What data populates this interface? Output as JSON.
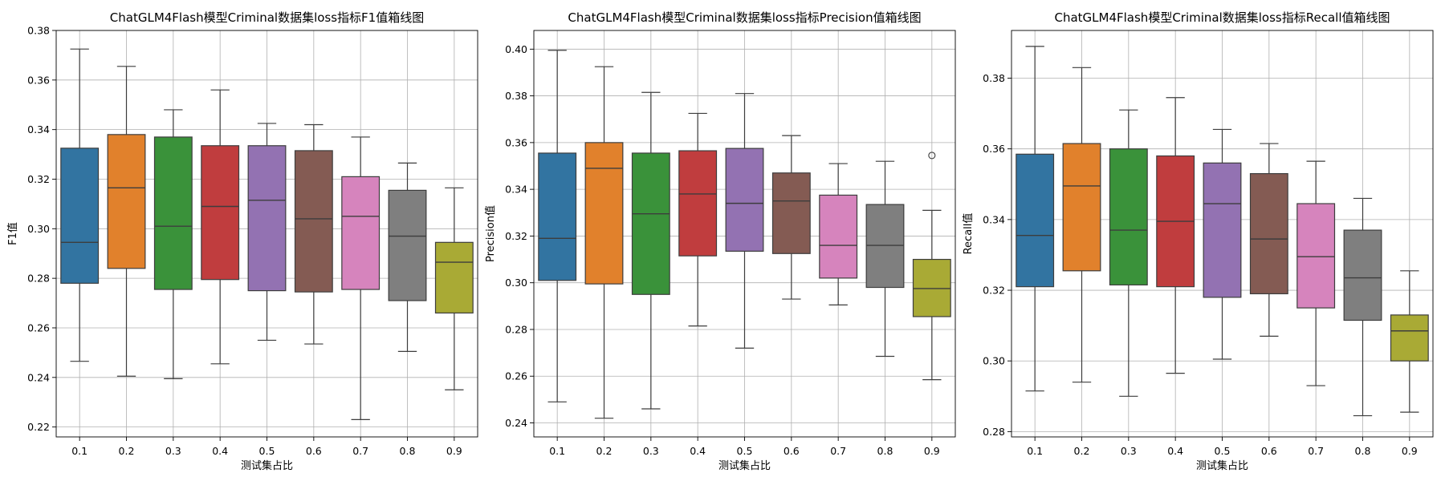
{
  "colors": [
    "#3274a1",
    "#e1812c",
    "#3a923a",
    "#c03d3e",
    "#9372b2",
    "#845b53",
    "#d684bd",
    "#7f7f7f",
    "#a9aa35"
  ],
  "chart_data": [
    {
      "type": "box",
      "title": "ChatGLM4Flash模型Criminal数据集loss指标F1值箱线图",
      "xlabel": "测试集占比",
      "ylabel": "F1值",
      "categories": [
        "0.1",
        "0.2",
        "0.3",
        "0.4",
        "0.5",
        "0.6",
        "0.7",
        "0.8",
        "0.9"
      ],
      "ylim": [
        0.216,
        0.38
      ],
      "yticks": [
        "0.22",
        "0.24",
        "0.26",
        "0.28",
        "0.30",
        "0.32",
        "0.34",
        "0.36",
        "0.38"
      ],
      "grid": true,
      "boxes": [
        {
          "whislo": 0.2465,
          "q1": 0.278,
          "med": 0.2945,
          "q3": 0.3325,
          "whishi": 0.3725,
          "fliers": []
        },
        {
          "whislo": 0.2405,
          "q1": 0.284,
          "med": 0.3165,
          "q3": 0.338,
          "whishi": 0.3655,
          "fliers": []
        },
        {
          "whislo": 0.2395,
          "q1": 0.2755,
          "med": 0.301,
          "q3": 0.337,
          "whishi": 0.348,
          "fliers": []
        },
        {
          "whislo": 0.2455,
          "q1": 0.2795,
          "med": 0.309,
          "q3": 0.3335,
          "whishi": 0.356,
          "fliers": []
        },
        {
          "whislo": 0.255,
          "q1": 0.275,
          "med": 0.3115,
          "q3": 0.3335,
          "whishi": 0.3425,
          "fliers": []
        },
        {
          "whislo": 0.2535,
          "q1": 0.2745,
          "med": 0.304,
          "q3": 0.3315,
          "whishi": 0.342,
          "fliers": []
        },
        {
          "whislo": 0.223,
          "q1": 0.2755,
          "med": 0.305,
          "q3": 0.321,
          "whishi": 0.337,
          "fliers": []
        },
        {
          "whislo": 0.2505,
          "q1": 0.271,
          "med": 0.297,
          "q3": 0.3155,
          "whishi": 0.3265,
          "fliers": []
        },
        {
          "whislo": 0.235,
          "q1": 0.266,
          "med": 0.2865,
          "q3": 0.2945,
          "whishi": 0.3165,
          "fliers": []
        }
      ]
    },
    {
      "type": "box",
      "title": "ChatGLM4Flash模型Criminal数据集loss指标Precision值箱线图",
      "xlabel": "测试集占比",
      "ylabel": "Precision值",
      "categories": [
        "0.1",
        "0.2",
        "0.3",
        "0.4",
        "0.5",
        "0.6",
        "0.7",
        "0.8",
        "0.9"
      ],
      "ylim": [
        0.234,
        0.408
      ],
      "yticks": [
        "0.24",
        "0.26",
        "0.28",
        "0.30",
        "0.32",
        "0.34",
        "0.36",
        "0.38",
        "0.40"
      ],
      "grid": true,
      "boxes": [
        {
          "whislo": 0.249,
          "q1": 0.301,
          "med": 0.319,
          "q3": 0.3555,
          "whishi": 0.3995,
          "fliers": []
        },
        {
          "whislo": 0.242,
          "q1": 0.2995,
          "med": 0.349,
          "q3": 0.36,
          "whishi": 0.3925,
          "fliers": []
        },
        {
          "whislo": 0.246,
          "q1": 0.295,
          "med": 0.3295,
          "q3": 0.3555,
          "whishi": 0.3815,
          "fliers": []
        },
        {
          "whislo": 0.2815,
          "q1": 0.3115,
          "med": 0.338,
          "q3": 0.3565,
          "whishi": 0.3725,
          "fliers": []
        },
        {
          "whislo": 0.272,
          "q1": 0.3135,
          "med": 0.334,
          "q3": 0.3575,
          "whishi": 0.381,
          "fliers": []
        },
        {
          "whislo": 0.293,
          "q1": 0.3125,
          "med": 0.335,
          "q3": 0.347,
          "whishi": 0.363,
          "fliers": []
        },
        {
          "whislo": 0.2905,
          "q1": 0.302,
          "med": 0.316,
          "q3": 0.3375,
          "whishi": 0.351,
          "fliers": []
        },
        {
          "whislo": 0.2685,
          "q1": 0.298,
          "med": 0.316,
          "q3": 0.3335,
          "whishi": 0.352,
          "fliers": []
        },
        {
          "whislo": 0.2585,
          "q1": 0.2855,
          "med": 0.2975,
          "q3": 0.31,
          "whishi": 0.331,
          "fliers": [
            0.3545
          ]
        }
      ]
    },
    {
      "type": "box",
      "title": "ChatGLM4Flash模型Criminal数据集loss指标Recall值箱线图",
      "xlabel": "测试集占比",
      "ylabel": "Recall值",
      "categories": [
        "0.1",
        "0.2",
        "0.3",
        "0.4",
        "0.5",
        "0.6",
        "0.7",
        "0.8",
        "0.9"
      ],
      "ylim": [
        0.2785,
        0.3935
      ],
      "yticks": [
        "0.28",
        "0.30",
        "0.32",
        "0.34",
        "0.36",
        "0.38"
      ],
      "grid": true,
      "boxes": [
        {
          "whislo": 0.2915,
          "q1": 0.321,
          "med": 0.3355,
          "q3": 0.3585,
          "whishi": 0.389,
          "fliers": []
        },
        {
          "whislo": 0.294,
          "q1": 0.3255,
          "med": 0.3495,
          "q3": 0.3615,
          "whishi": 0.383,
          "fliers": []
        },
        {
          "whislo": 0.29,
          "q1": 0.3215,
          "med": 0.337,
          "q3": 0.36,
          "whishi": 0.371,
          "fliers": []
        },
        {
          "whislo": 0.2965,
          "q1": 0.321,
          "med": 0.3395,
          "q3": 0.358,
          "whishi": 0.3745,
          "fliers": []
        },
        {
          "whislo": 0.3005,
          "q1": 0.318,
          "med": 0.3445,
          "q3": 0.356,
          "whishi": 0.3655,
          "fliers": []
        },
        {
          "whislo": 0.307,
          "q1": 0.319,
          "med": 0.3345,
          "q3": 0.353,
          "whishi": 0.3615,
          "fliers": []
        },
        {
          "whislo": 0.293,
          "q1": 0.315,
          "med": 0.3295,
          "q3": 0.3445,
          "whishi": 0.3565,
          "fliers": []
        },
        {
          "whislo": 0.2845,
          "q1": 0.3115,
          "med": 0.3235,
          "q3": 0.337,
          "whishi": 0.346,
          "fliers": []
        },
        {
          "whislo": 0.2855,
          "q1": 0.3,
          "med": 0.3085,
          "q3": 0.313,
          "whishi": 0.3255,
          "fliers": []
        }
      ]
    }
  ]
}
